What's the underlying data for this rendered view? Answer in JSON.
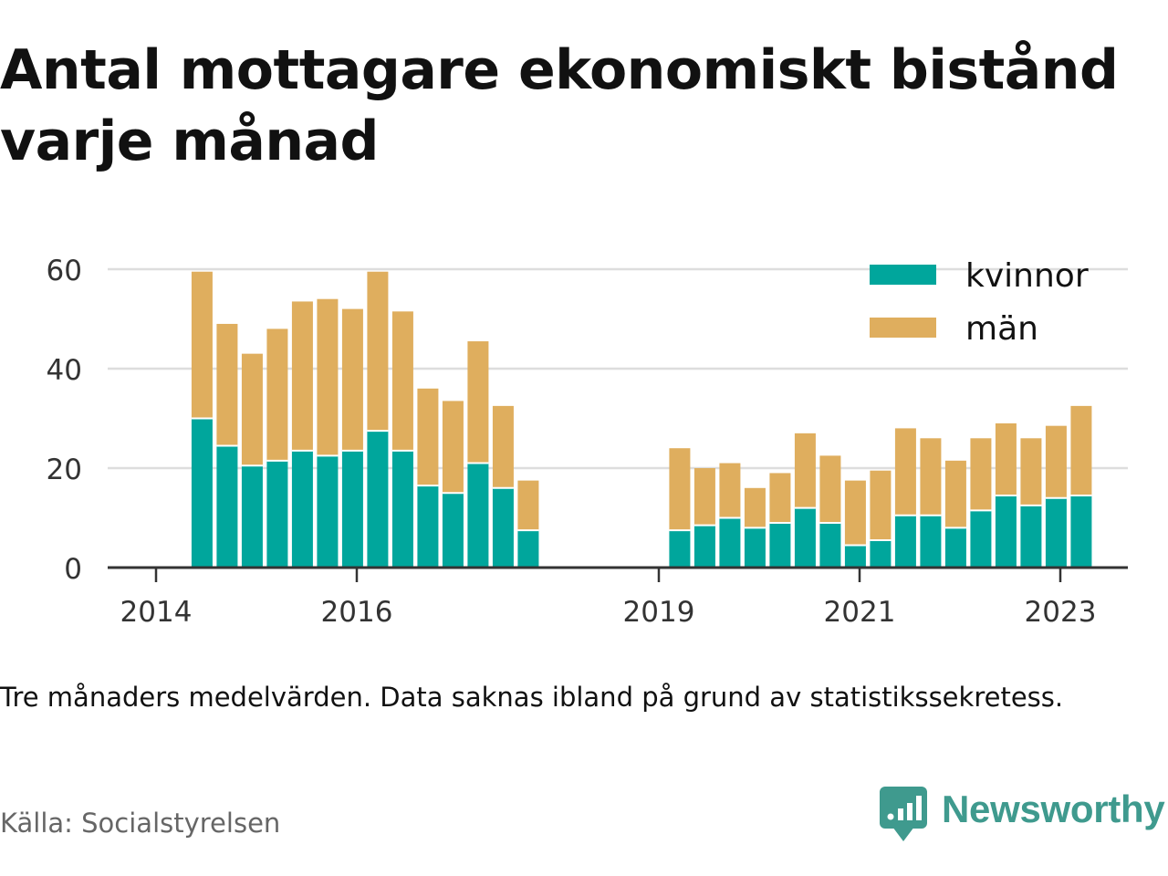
{
  "title": "Antal mottagare ekonomiskt bistånd varje månad",
  "note": "Tre månaders medelvärden. Data saknas ibland på grund av statistikssekretess.",
  "source": "Källa: Socialstyrelsen",
  "brand": {
    "name": "Newsworthy",
    "color": "#3f9a8e",
    "icon": "newsworthy-logo-icon"
  },
  "chart_data": {
    "type": "bar",
    "stacked": true,
    "x_tick_labels": [
      "2014",
      "2016",
      "2019",
      "2021",
      "2023"
    ],
    "y_ticks": [
      0,
      20,
      40,
      60
    ],
    "ylim": [
      0,
      62
    ],
    "grid": "horizontal",
    "legend_position": "top-right",
    "series": [
      {
        "name": "kvinnor",
        "color": "#00a69c"
      },
      {
        "name": "män",
        "color": "#dfae5e"
      }
    ],
    "x": [
      "2014-06",
      "2014-09",
      "2014-12",
      "2015-03",
      "2015-06",
      "2015-09",
      "2015-12",
      "2016-03",
      "2016-06",
      "2016-09",
      "2016-12",
      "2017-03",
      "2017-06",
      "2017-09",
      "2019-03",
      "2019-06",
      "2019-09",
      "2019-12",
      "2020-03",
      "2020-06",
      "2020-09",
      "2020-12",
      "2021-03",
      "2021-06",
      "2021-09",
      "2021-12",
      "2022-03",
      "2022-06",
      "2022-09",
      "2022-12",
      "2023-03"
    ],
    "kvinnor": [
      30,
      24.5,
      20.5,
      21.5,
      23.5,
      22.5,
      23.5,
      27.5,
      23.5,
      16.5,
      15,
      21,
      16,
      7.5,
      7.5,
      8.5,
      10,
      8,
      9,
      12,
      9,
      4.5,
      5.5,
      10.5,
      10.5,
      8,
      11.5,
      14.5,
      12.5,
      14,
      14.5
    ],
    "män": [
      29.5,
      24.5,
      22.5,
      26.5,
      30,
      31.5,
      28.5,
      32,
      28,
      19.5,
      18.5,
      24.5,
      16.5,
      10,
      16.5,
      11.5,
      11,
      8,
      10,
      15,
      13.5,
      13,
      14,
      17.5,
      15.5,
      13.5,
      14.5,
      14.5,
      13.5,
      14.5,
      18
    ]
  }
}
